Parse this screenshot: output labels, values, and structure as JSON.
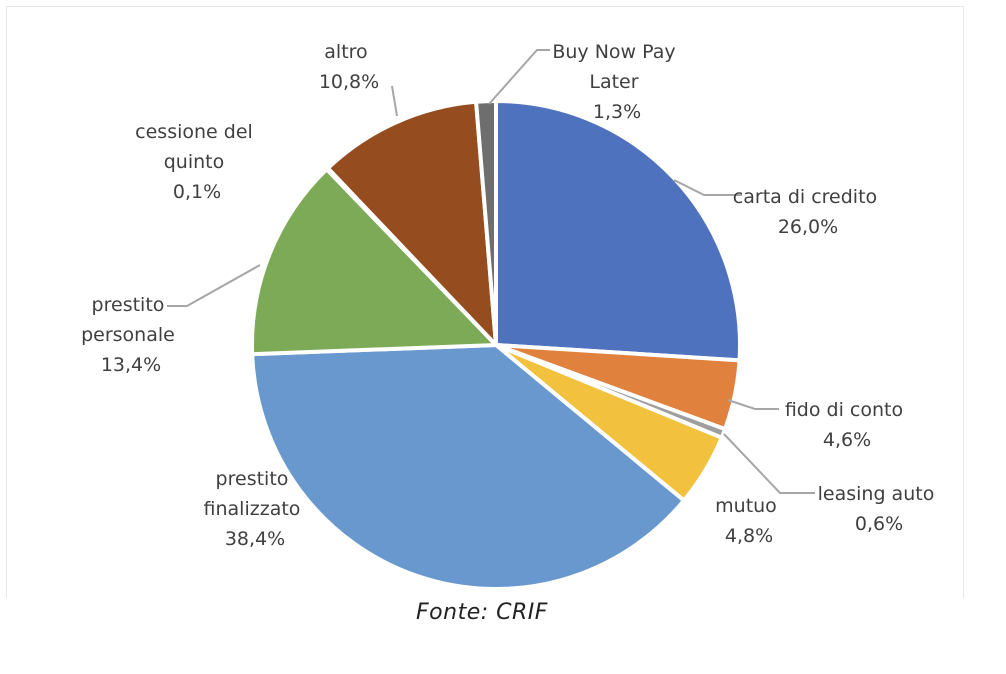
{
  "chart_data": {
    "type": "pie",
    "title": "",
    "legend": "none",
    "slices": [
      {
        "name": "carta di credito",
        "value": 26.0,
        "display": "26,0%",
        "color": "#4F72BE"
      },
      {
        "name": "fido di conto",
        "value": 4.6,
        "display": "4,6%",
        "color": "#E0823D"
      },
      {
        "name": "leasing auto",
        "value": 0.6,
        "display": "0,6%",
        "color": "#9E9E9E"
      },
      {
        "name": "mutuo",
        "value": 4.8,
        "display": "4,8%",
        "color": "#F2C23E"
      },
      {
        "name": "prestito finalizzato",
        "value": 38.4,
        "display": "38,4%",
        "color": "#6898CE"
      },
      {
        "name": "prestito personale",
        "value": 13.4,
        "display": "13,4%",
        "color": "#7DAA57"
      },
      {
        "name": "cessione del quinto",
        "value": 0.1,
        "display": "0,1%",
        "color": "#2F4E8A"
      },
      {
        "name": "altro",
        "value": 10.8,
        "display": "10,8%",
        "color": "#954C1F"
      },
      {
        "name": "Buy Now Pay Later",
        "value": 1.3,
        "display": "1,3%",
        "color": "#6E6E6E"
      }
    ]
  },
  "caption": "Fonte: CRIF"
}
